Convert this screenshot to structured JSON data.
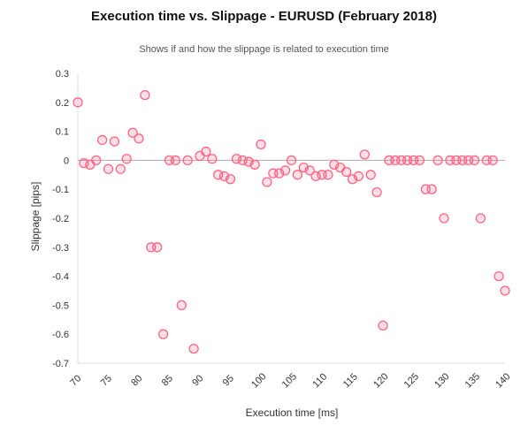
{
  "chart_data": {
    "type": "scatter",
    "title": "Execution time vs. Slippage - EURUSD (February 2018)",
    "subtitle": "Shows if and how the slippage is related to execution time",
    "xlabel": "Execution time [ms]",
    "ylabel": "Slippage [pips]",
    "xlim": [
      70,
      140
    ],
    "ylim": [
      -0.7,
      0.3
    ],
    "xticks": [
      "70",
      "75",
      "80",
      "85",
      "90",
      "95",
      "100",
      "105",
      "110",
      "115",
      "120",
      "125",
      "130",
      "135",
      "140"
    ],
    "yticks": [
      "0.3",
      "0.2",
      "0.1",
      "0",
      "-0.1",
      "-0.2",
      "-0.3",
      "-0.4",
      "-0.5",
      "-0.6",
      "-0.7"
    ],
    "grid": false,
    "zero_line": true,
    "marker_color": "#ff6384",
    "marker_fill": "rgba(255,99,132,0.2)",
    "points": [
      {
        "x": 70,
        "y": 0.2
      },
      {
        "x": 71,
        "y": -0.01
      },
      {
        "x": 72,
        "y": -0.015
      },
      {
        "x": 73,
        "y": 0.0
      },
      {
        "x": 74,
        "y": 0.07
      },
      {
        "x": 75,
        "y": -0.03
      },
      {
        "x": 76,
        "y": 0.065
      },
      {
        "x": 77,
        "y": -0.03
      },
      {
        "x": 78,
        "y": 0.005
      },
      {
        "x": 79,
        "y": 0.095
      },
      {
        "x": 80,
        "y": 0.075
      },
      {
        "x": 81,
        "y": 0.225
      },
      {
        "x": 82,
        "y": -0.3
      },
      {
        "x": 83,
        "y": -0.3
      },
      {
        "x": 84,
        "y": -0.6
      },
      {
        "x": 85,
        "y": 0.0
      },
      {
        "x": 86,
        "y": 0.0
      },
      {
        "x": 87,
        "y": -0.5
      },
      {
        "x": 88,
        "y": 0.0
      },
      {
        "x": 89,
        "y": -0.65
      },
      {
        "x": 90,
        "y": 0.015
      },
      {
        "x": 91,
        "y": 0.03
      },
      {
        "x": 92,
        "y": 0.005
      },
      {
        "x": 93,
        "y": -0.05
      },
      {
        "x": 94,
        "y": -0.055
      },
      {
        "x": 95,
        "y": -0.065
      },
      {
        "x": 96,
        "y": 0.005
      },
      {
        "x": 97,
        "y": 0.0
      },
      {
        "x": 98,
        "y": -0.005
      },
      {
        "x": 99,
        "y": -0.015
      },
      {
        "x": 100,
        "y": 0.055
      },
      {
        "x": 101,
        "y": -0.075
      },
      {
        "x": 102,
        "y": -0.045
      },
      {
        "x": 103,
        "y": -0.045
      },
      {
        "x": 104,
        "y": -0.035
      },
      {
        "x": 105,
        "y": 0.0
      },
      {
        "x": 106,
        "y": -0.05
      },
      {
        "x": 107,
        "y": -0.025
      },
      {
        "x": 108,
        "y": -0.035
      },
      {
        "x": 109,
        "y": -0.055
      },
      {
        "x": 110,
        "y": -0.05
      },
      {
        "x": 111,
        "y": -0.05
      },
      {
        "x": 112,
        "y": -0.015
      },
      {
        "x": 113,
        "y": -0.025
      },
      {
        "x": 114,
        "y": -0.04
      },
      {
        "x": 115,
        "y": -0.065
      },
      {
        "x": 116,
        "y": -0.055
      },
      {
        "x": 117,
        "y": 0.02
      },
      {
        "x": 118,
        "y": -0.05
      },
      {
        "x": 119,
        "y": -0.11
      },
      {
        "x": 120,
        "y": -0.57
      },
      {
        "x": 121,
        "y": 0.0
      },
      {
        "x": 122,
        "y": 0.0
      },
      {
        "x": 123,
        "y": 0.0
      },
      {
        "x": 124,
        "y": 0.0
      },
      {
        "x": 125,
        "y": 0.0
      },
      {
        "x": 126,
        "y": 0.0
      },
      {
        "x": 127,
        "y": -0.1
      },
      {
        "x": 128,
        "y": -0.1
      },
      {
        "x": 129,
        "y": 0.0
      },
      {
        "x": 130,
        "y": -0.2
      },
      {
        "x": 131,
        "y": 0.0
      },
      {
        "x": 132,
        "y": 0.0
      },
      {
        "x": 133,
        "y": 0.0
      },
      {
        "x": 134,
        "y": 0.0
      },
      {
        "x": 135,
        "y": 0.0
      },
      {
        "x": 136,
        "y": -0.2
      },
      {
        "x": 137,
        "y": 0.0
      },
      {
        "x": 138,
        "y": 0.0
      },
      {
        "x": 139,
        "y": -0.4
      },
      {
        "x": 140,
        "y": -0.45
      }
    ]
  }
}
